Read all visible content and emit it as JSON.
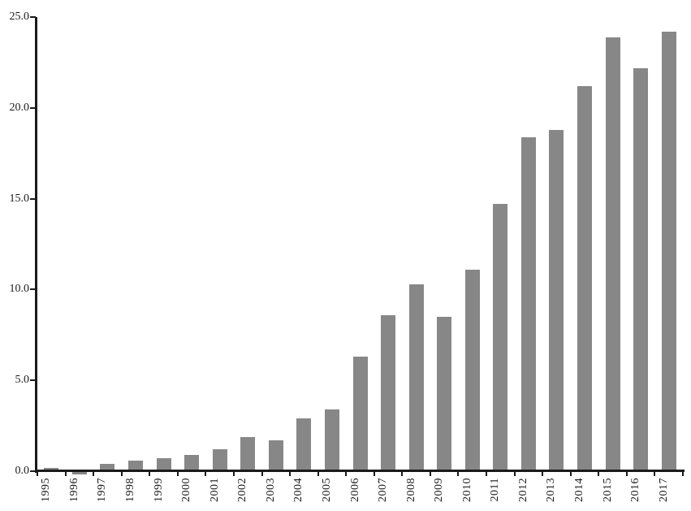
{
  "figure": {
    "background": "#ffffff",
    "bar_color": "#878787",
    "axis_color": "#1a1a1a",
    "text_color": "#1a1a1a"
  },
  "chart_data": {
    "type": "bar",
    "title": "",
    "xlabel": "",
    "ylabel": "",
    "categories": [
      "1995",
      "1996",
      "1997",
      "1998",
      "1999",
      "2000",
      "2001",
      "2002",
      "2003",
      "2004",
      "2005",
      "2006",
      "2007",
      "2008",
      "2009",
      "2010",
      "2011",
      "2012",
      "2013",
      "2014",
      "2015",
      "2016",
      "2017"
    ],
    "values": [
      0.2,
      -0.2,
      0.4,
      0.6,
      0.7,
      0.9,
      1.2,
      1.9,
      1.7,
      2.9,
      3.4,
      6.3,
      8.6,
      10.3,
      8.5,
      11.1,
      14.7,
      18.4,
      18.8,
      21.2,
      23.9,
      22.2,
      24.2
    ],
    "ylim": [
      0,
      25
    ],
    "ytick_values": [
      0,
      5,
      10,
      15,
      20,
      25
    ],
    "ytick_labels": [
      "0.0",
      "5.0",
      "10.0",
      "15.0",
      "20.0",
      "25.0"
    ],
    "grid": false,
    "legend": null,
    "series_color": "#878787",
    "bar_orientation": "vertical",
    "x_tick_style": "boundary-ticks-below-axis",
    "x_label_rotation_deg": 90
  }
}
